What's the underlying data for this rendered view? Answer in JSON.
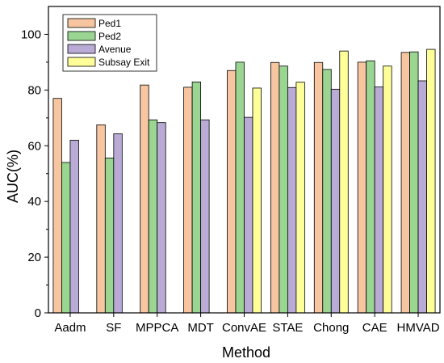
{
  "chart_data": {
    "type": "bar",
    "title": "",
    "xlabel": "Method",
    "ylabel": "AUC(%)",
    "ylim": [
      0,
      110
    ],
    "yticks": [
      0,
      20,
      40,
      60,
      80,
      100
    ],
    "categories": [
      "Aadm",
      "SF",
      "MPPCA",
      "MDT",
      "ConvAE",
      "STAE",
      "Chong",
      "CAE",
      "HMVAD"
    ],
    "series": [
      {
        "name": "Ped1",
        "color": "#f7c59f",
        "values": [
          77.0,
          67.5,
          81.8,
          81.0,
          87.0,
          89.9,
          89.9,
          90.0,
          93.5
        ]
      },
      {
        "name": "Ped2",
        "color": "#9ad592",
        "values": [
          54.0,
          55.6,
          69.3,
          82.9,
          90.0,
          88.6,
          87.4,
          90.5,
          93.7
        ]
      },
      {
        "name": "Avenue",
        "color": "#b9abd6",
        "values": [
          62.0,
          64.3,
          68.3,
          69.3,
          70.2,
          80.9,
          80.3,
          81.1,
          83.3
        ]
      },
      {
        "name": "Subsay Exit",
        "color": "#ffff99",
        "values": [
          null,
          null,
          null,
          null,
          80.7,
          82.8,
          94.0,
          88.6,
          94.6
        ]
      }
    ],
    "legend_position": "top-left",
    "grid": false
  }
}
